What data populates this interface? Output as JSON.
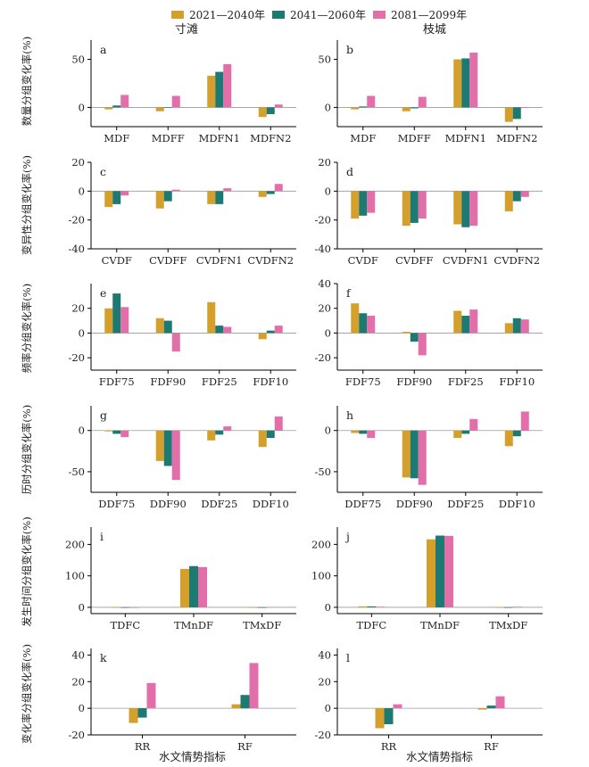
{
  "legend": [
    {
      "name": "2021—2040年",
      "color": "#D4A02B"
    },
    {
      "name": "2041—2060年",
      "color": "#1C7A72"
    },
    {
      "name": "2081—2099年",
      "color": "#E26FAA"
    }
  ],
  "stations": [
    "寸滩",
    "枝城"
  ],
  "xlabel": "水文情势指标",
  "ylabels": [
    "数量分组变化率(%)",
    "变异性分组变化率(%)",
    "频率分组变化率(%)",
    "历时分组变化率(%)",
    "发生时间分组变化率(%)",
    "变化率分组变化率(%)"
  ],
  "chart_data": [
    {
      "panel": "a",
      "station": "寸滩",
      "type": "bar",
      "categories": [
        "MDF",
        "MDFF",
        "MDFN1",
        "MDFN2"
      ],
      "ylim": [
        -20,
        70
      ],
      "yticks": [
        0,
        50
      ],
      "series": [
        {
          "name": "2021—2040年",
          "values": [
            -2,
            -4,
            33,
            -10
          ]
        },
        {
          "name": "2041—2060年",
          "values": [
            2,
            0,
            37,
            -7
          ]
        },
        {
          "name": "2081—2099年",
          "values": [
            13,
            12,
            45,
            3
          ]
        }
      ]
    },
    {
      "panel": "b",
      "station": "枝城",
      "type": "bar",
      "categories": [
        "MDF",
        "MDFF",
        "MDFN1",
        "MDFN2"
      ],
      "ylim": [
        -20,
        70
      ],
      "yticks": [
        0,
        50
      ],
      "series": [
        {
          "name": "2021—2040年",
          "values": [
            -2,
            -4,
            50,
            -15
          ]
        },
        {
          "name": "2041—2060年",
          "values": [
            1,
            -1,
            51,
            -12
          ]
        },
        {
          "name": "2081—2099年",
          "values": [
            12,
            11,
            57,
            0
          ]
        }
      ]
    },
    {
      "panel": "c",
      "station": "寸滩",
      "type": "bar",
      "categories": [
        "CVDF",
        "CVDFF",
        "CVDFN1",
        "CVDFN2"
      ],
      "ylim": [
        -40,
        20
      ],
      "yticks": [
        -40,
        -20,
        0,
        20
      ],
      "series": [
        {
          "name": "2021—2040年",
          "values": [
            -11,
            -12,
            -9,
            -4
          ]
        },
        {
          "name": "2041—2060年",
          "values": [
            -9,
            -7,
            -9,
            -2
          ]
        },
        {
          "name": "2081—2099年",
          "values": [
            -3,
            1,
            2,
            5
          ]
        }
      ]
    },
    {
      "panel": "d",
      "station": "枝城",
      "type": "bar",
      "categories": [
        "CVDF",
        "CVDFF",
        "CVDFN1",
        "CVDFN2"
      ],
      "ylim": [
        -40,
        20
      ],
      "yticks": [
        -40,
        -20,
        0,
        20
      ],
      "series": [
        {
          "name": "2021—2040年",
          "values": [
            -19,
            -24,
            -23,
            -14
          ]
        },
        {
          "name": "2041—2060年",
          "values": [
            -17,
            -22,
            -25,
            -7
          ]
        },
        {
          "name": "2081—2099年",
          "values": [
            -15,
            -19,
            -24,
            -4
          ]
        }
      ]
    },
    {
      "panel": "e",
      "station": "寸滩",
      "type": "bar",
      "categories": [
        "FDF75",
        "FDF90",
        "FDF25",
        "FDF10"
      ],
      "ylim": [
        -30,
        40
      ],
      "yticks": [
        -20,
        0,
        20
      ],
      "series": [
        {
          "name": "2021—2040年",
          "values": [
            20,
            12,
            25,
            -5
          ]
        },
        {
          "name": "2041—2060年",
          "values": [
            32,
            10,
            6,
            2
          ]
        },
        {
          "name": "2081—2099年",
          "values": [
            21,
            -15,
            5,
            6
          ]
        }
      ]
    },
    {
      "panel": "f",
      "station": "枝城",
      "type": "bar",
      "categories": [
        "FDF75",
        "FDF90",
        "FDF25",
        "FDF10"
      ],
      "ylim": [
        -30,
        40
      ],
      "yticks": [
        -20,
        0,
        20,
        40
      ],
      "series": [
        {
          "name": "2021—2040年",
          "values": [
            24,
            1,
            18,
            8
          ]
        },
        {
          "name": "2041—2060年",
          "values": [
            16,
            -7,
            14,
            12
          ]
        },
        {
          "name": "2081—2099年",
          "values": [
            14,
            -18,
            19,
            11
          ]
        }
      ]
    },
    {
      "panel": "g",
      "station": "寸滩",
      "type": "bar",
      "categories": [
        "DDF75",
        "DDF90",
        "DDF25",
        "DDF10"
      ],
      "ylim": [
        -75,
        30
      ],
      "yticks": [
        -50,
        0
      ],
      "series": [
        {
          "name": "2021—2040年",
          "values": [
            -1,
            -37,
            -12,
            -20
          ]
        },
        {
          "name": "2041—2060年",
          "values": [
            -4,
            -43,
            -5,
            -9
          ]
        },
        {
          "name": "2081—2099年",
          "values": [
            -8,
            -60,
            5,
            17
          ]
        }
      ]
    },
    {
      "panel": "h",
      "station": "枝城",
      "type": "bar",
      "categories": [
        "DDF75",
        "DDF90",
        "DDF25",
        "DDF10"
      ],
      "ylim": [
        -75,
        30
      ],
      "yticks": [
        -50,
        0
      ],
      "series": [
        {
          "name": "2021—2040年",
          "values": [
            -3,
            -57,
            -9,
            -19
          ]
        },
        {
          "name": "2041—2060年",
          "values": [
            -4,
            -58,
            -4,
            -7
          ]
        },
        {
          "name": "2081—2099年",
          "values": [
            -9,
            -66,
            14,
            23
          ]
        }
      ]
    },
    {
      "panel": "i",
      "station": "寸滩",
      "type": "bar",
      "categories": [
        "TDFC",
        "TMnDF",
        "TMxDF"
      ],
      "ylim": [
        -20,
        255
      ],
      "yticks": [
        0,
        100,
        200
      ],
      "series": [
        {
          "name": "2021—2040年",
          "values": [
            0,
            122,
            0
          ]
        },
        {
          "name": "2041—2060年",
          "values": [
            0,
            131,
            0
          ]
        },
        {
          "name": "2081—2099年",
          "values": [
            0,
            128,
            1
          ]
        }
      ]
    },
    {
      "panel": "j",
      "station": "枝城",
      "type": "bar",
      "categories": [
        "TDFC",
        "TMnDF",
        "TMxDF"
      ],
      "ylim": [
        -20,
        255
      ],
      "yticks": [
        0,
        100,
        200
      ],
      "series": [
        {
          "name": "2021—2040年",
          "values": [
            3,
            216,
            0
          ]
        },
        {
          "name": "2041—2060年",
          "values": [
            3,
            228,
            0
          ]
        },
        {
          "name": "2081—2099年",
          "values": [
            2,
            227,
            2
          ]
        }
      ]
    },
    {
      "panel": "k",
      "station": "寸滩",
      "type": "bar",
      "categories": [
        "RR",
        "RF"
      ],
      "ylim": [
        -20,
        45
      ],
      "yticks": [
        -20,
        0,
        20,
        40
      ],
      "series": [
        {
          "name": "2021—2040年",
          "values": [
            -11,
            3
          ]
        },
        {
          "name": "2041—2060年",
          "values": [
            -7,
            10
          ]
        },
        {
          "name": "2081—2099年",
          "values": [
            19,
            34
          ]
        }
      ]
    },
    {
      "panel": "l",
      "station": "枝城",
      "type": "bar",
      "categories": [
        "RR",
        "RF"
      ],
      "ylim": [
        -20,
        45
      ],
      "yticks": [
        -20,
        0,
        20,
        40
      ],
      "series": [
        {
          "name": "2021—2040年",
          "values": [
            -15,
            -1
          ]
        },
        {
          "name": "2041—2060年",
          "values": [
            -12,
            2
          ]
        },
        {
          "name": "2081—2099年",
          "values": [
            3,
            9
          ]
        }
      ]
    }
  ]
}
